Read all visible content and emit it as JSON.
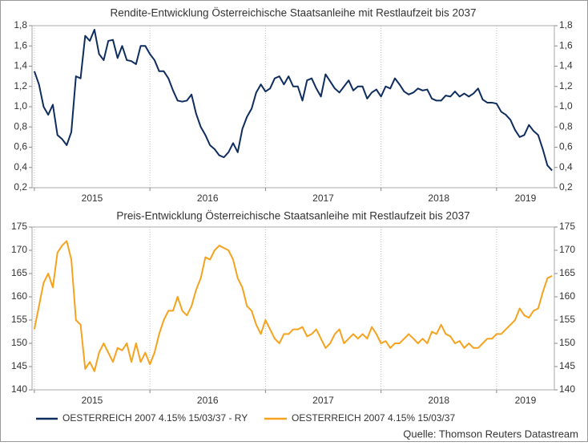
{
  "chart_data": [
    {
      "type": "line",
      "title": "Rendite-Entwicklung Österreichische Staatsanleihe mit Restlaufzeit bis 2037",
      "x": [
        2015,
        2015.04,
        2015.08,
        2015.12,
        2015.16,
        2015.2,
        2015.24,
        2015.28,
        2015.32,
        2015.36,
        2015.4,
        2015.44,
        2015.48,
        2015.52,
        2015.56,
        2015.6,
        2015.64,
        2015.68,
        2015.72,
        2015.76,
        2015.8,
        2015.84,
        2015.88,
        2015.92,
        2015.96,
        2016,
        2016.04,
        2016.08,
        2016.12,
        2016.16,
        2016.2,
        2016.24,
        2016.28,
        2016.32,
        2016.36,
        2016.4,
        2016.44,
        2016.48,
        2016.52,
        2016.56,
        2016.6,
        2016.64,
        2016.68,
        2016.72,
        2016.76,
        2016.8,
        2016.84,
        2016.88,
        2016.92,
        2016.96,
        2017,
        2017.04,
        2017.08,
        2017.12,
        2017.16,
        2017.2,
        2017.24,
        2017.28,
        2017.32,
        2017.36,
        2017.4,
        2017.44,
        2017.48,
        2017.52,
        2017.56,
        2017.6,
        2017.64,
        2017.68,
        2017.72,
        2017.76,
        2017.8,
        2017.84,
        2017.88,
        2017.92,
        2017.96,
        2018,
        2018.04,
        2018.08,
        2018.12,
        2018.16,
        2018.2,
        2018.24,
        2018.28,
        2018.32,
        2018.36,
        2018.4,
        2018.44,
        2018.48,
        2018.52,
        2018.56,
        2018.6,
        2018.64,
        2018.68,
        2018.72,
        2018.76,
        2018.8,
        2018.84,
        2018.88,
        2018.92,
        2018.96,
        2019,
        2019.04,
        2019.08,
        2019.12,
        2019.16,
        2019.2,
        2019.24,
        2019.28,
        2019.32,
        2019.36,
        2019.4,
        2019.44,
        2019.48
      ],
      "series": [
        {
          "name": "OESTERREICH 2007 4.15% 15/03/37 - RY",
          "color": "#0e2d5e",
          "values": [
            1.35,
            1.22,
            1.0,
            0.92,
            1.02,
            0.72,
            0.68,
            0.62,
            0.75,
            1.3,
            1.28,
            1.7,
            1.65,
            1.76,
            1.52,
            1.46,
            1.65,
            1.66,
            1.48,
            1.6,
            1.46,
            1.45,
            1.42,
            1.6,
            1.6,
            1.52,
            1.46,
            1.35,
            1.35,
            1.28,
            1.16,
            1.06,
            1.05,
            1.06,
            1.12,
            0.93,
            0.8,
            0.72,
            0.62,
            0.58,
            0.52,
            0.5,
            0.55,
            0.64,
            0.55,
            0.78,
            0.9,
            0.98,
            1.14,
            1.22,
            1.15,
            1.18,
            1.28,
            1.3,
            1.22,
            1.3,
            1.2,
            1.2,
            1.06,
            1.26,
            1.28,
            1.18,
            1.1,
            1.32,
            1.25,
            1.18,
            1.14,
            1.2,
            1.26,
            1.16,
            1.2,
            1.2,
            1.08,
            1.14,
            1.17,
            1.1,
            1.2,
            1.18,
            1.28,
            1.22,
            1.15,
            1.12,
            1.14,
            1.18,
            1.16,
            1.17,
            1.08,
            1.06,
            1.06,
            1.11,
            1.1,
            1.15,
            1.1,
            1.13,
            1.1,
            1.13,
            1.18,
            1.07,
            1.04,
            1.04,
            1.03,
            0.95,
            0.92,
            0.87,
            0.77,
            0.7,
            0.72,
            0.82,
            0.76,
            0.72,
            0.58,
            0.42,
            0.37
          ]
        }
      ],
      "xlim": [
        2014.98,
        2019.5
      ],
      "xticks": [
        2015,
        2016,
        2017,
        2018,
        2019
      ],
      "ylim": [
        0.2,
        1.8
      ],
      "yticks": [
        {
          "value": 0.2,
          "label": "0,2"
        },
        {
          "value": 0.4,
          "label": "0,4"
        },
        {
          "value": 0.6,
          "label": "0,6"
        },
        {
          "value": 0.8,
          "label": "0,8"
        },
        {
          "value": 1.0,
          "label": "1,0"
        },
        {
          "value": 1.2,
          "label": "1,2"
        },
        {
          "value": 1.4,
          "label": "1,4"
        },
        {
          "value": 1.6,
          "label": "1,6"
        },
        {
          "value": 1.8,
          "label": "1,8"
        }
      ],
      "grid": true
    },
    {
      "type": "line",
      "title": "Preis-Entwicklung Österreichische Staatsanleihe mit Restlaufzeit bis 2037",
      "x": [
        2015,
        2015.04,
        2015.08,
        2015.12,
        2015.16,
        2015.2,
        2015.24,
        2015.28,
        2015.32,
        2015.36,
        2015.4,
        2015.44,
        2015.48,
        2015.52,
        2015.56,
        2015.6,
        2015.64,
        2015.68,
        2015.72,
        2015.76,
        2015.8,
        2015.84,
        2015.88,
        2015.92,
        2015.96,
        2016,
        2016.04,
        2016.08,
        2016.12,
        2016.16,
        2016.2,
        2016.24,
        2016.28,
        2016.32,
        2016.36,
        2016.4,
        2016.44,
        2016.48,
        2016.52,
        2016.56,
        2016.6,
        2016.64,
        2016.68,
        2016.72,
        2016.76,
        2016.8,
        2016.84,
        2016.88,
        2016.92,
        2016.96,
        2017,
        2017.04,
        2017.08,
        2017.12,
        2017.16,
        2017.2,
        2017.24,
        2017.28,
        2017.32,
        2017.36,
        2017.4,
        2017.44,
        2017.48,
        2017.52,
        2017.56,
        2017.6,
        2017.64,
        2017.68,
        2017.72,
        2017.76,
        2017.8,
        2017.84,
        2017.88,
        2017.92,
        2017.96,
        2018,
        2018.04,
        2018.08,
        2018.12,
        2018.16,
        2018.2,
        2018.24,
        2018.28,
        2018.32,
        2018.36,
        2018.4,
        2018.44,
        2018.48,
        2018.52,
        2018.56,
        2018.6,
        2018.64,
        2018.68,
        2018.72,
        2018.76,
        2018.8,
        2018.84,
        2018.88,
        2018.92,
        2018.96,
        2019,
        2019.04,
        2019.08,
        2019.12,
        2019.16,
        2019.2,
        2019.24,
        2019.28,
        2019.32,
        2019.36,
        2019.4,
        2019.44,
        2019.48
      ],
      "series": [
        {
          "name": "OESTERREICH 2007 4.15% 15/03/37",
          "color": "#f5a31e",
          "values": [
            153,
            158,
            163,
            165,
            162,
            169.5,
            171,
            172,
            168,
            155,
            154,
            144.5,
            146,
            144,
            148,
            150,
            148,
            146,
            149,
            148.5,
            150,
            146,
            150,
            146,
            148,
            145.5,
            148,
            152,
            155,
            157,
            157,
            160,
            157,
            156,
            158,
            161.5,
            164,
            168.5,
            168,
            170,
            171,
            170.5,
            170,
            168,
            164,
            162,
            158,
            157,
            154,
            152,
            155,
            153,
            151,
            150,
            152,
            152,
            153,
            153,
            153.5,
            151.5,
            152,
            153,
            151,
            149,
            150,
            152,
            153,
            150,
            151,
            152,
            151,
            152,
            151,
            153.5,
            152,
            150,
            150.5,
            149,
            150,
            150,
            151,
            152,
            151,
            150,
            151,
            150,
            152.5,
            152,
            154,
            152,
            151.5,
            150,
            150.5,
            149,
            150,
            149,
            149,
            150,
            151,
            151,
            152,
            152,
            153,
            154,
            155,
            157.5,
            156,
            155.5,
            157,
            157.5,
            161,
            164,
            164.5
          ]
        }
      ],
      "xlim": [
        2014.98,
        2019.5
      ],
      "xticks": [
        2015,
        2016,
        2017,
        2018,
        2019
      ],
      "ylim": [
        140,
        175
      ],
      "yticks": [
        140,
        145,
        150,
        155,
        160,
        165,
        170,
        175
      ],
      "grid": true
    }
  ],
  "source": "Quelle: Thomson Reuters Datastream"
}
